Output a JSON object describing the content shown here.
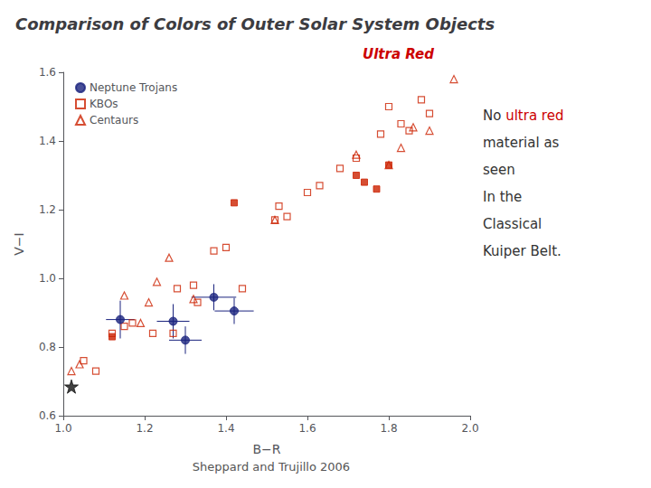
{
  "chart_data": {
    "type": "scatter",
    "title": "Comparison of Colors of Outer Solar System Objects",
    "subtitle": "Sheppard and Trujillo 2006",
    "xlabel": "B−R",
    "ylabel": "V−I",
    "xlim": [
      1.0,
      2.0
    ],
    "ylim": [
      0.6,
      1.6
    ],
    "xticks": [
      {
        "value": 1.0,
        "label": "1.0"
      },
      {
        "value": 1.2,
        "label": "1.2"
      },
      {
        "value": 1.4,
        "label": "1.4"
      },
      {
        "value": 1.6,
        "label": "1.6"
      },
      {
        "value": 1.8,
        "label": "1.8"
      },
      {
        "value": 2.0,
        "label": "2.0"
      }
    ],
    "yticks": [
      {
        "value": 0.6,
        "label": "0.6"
      },
      {
        "value": 0.8,
        "label": "0.8"
      },
      {
        "value": 1.0,
        "label": "1.0"
      },
      {
        "value": 1.2,
        "label": "1.2"
      },
      {
        "value": 1.4,
        "label": "1.4"
      },
      {
        "value": 1.6,
        "label": "1.6"
      }
    ],
    "grid": false,
    "legend": "upper left",
    "series": [
      {
        "name": "Neptune Trojans",
        "marker": "circle",
        "color": "#1a237e",
        "x": [
          1.14,
          1.27,
          1.3,
          1.37,
          1.42
        ],
        "values": [
          0.88,
          0.875,
          0.82,
          0.945,
          0.905
        ],
        "xerr": [
          0.035,
          0.04,
          0.04,
          0.055,
          0.048
        ],
        "yerr": [
          0.055,
          0.05,
          0.04,
          0.038,
          0.038
        ]
      },
      {
        "name": "KBOs",
        "marker": "square_open",
        "color": "#cc2200",
        "x": [
          1.05,
          1.08,
          1.12,
          1.15,
          1.17,
          1.22,
          1.27,
          1.28,
          1.32,
          1.33,
          1.37,
          1.4,
          1.44,
          1.52,
          1.53,
          1.55,
          1.6,
          1.63,
          1.68,
          1.72,
          1.78,
          1.8,
          1.83,
          1.85,
          1.88,
          1.9
        ],
        "values": [
          0.76,
          0.73,
          0.84,
          0.86,
          0.87,
          0.84,
          0.84,
          0.97,
          0.98,
          0.93,
          1.08,
          1.09,
          0.97,
          1.17,
          1.21,
          1.18,
          1.25,
          1.27,
          1.32,
          1.35,
          1.42,
          1.5,
          1.45,
          1.43,
          1.52,
          1.48
        ]
      },
      {
        "name": "KBOs",
        "marker": "square",
        "color": "#cc2200",
        "x": [
          1.12,
          1.42,
          1.72,
          1.74,
          1.77,
          1.8
        ],
        "values": [
          0.83,
          1.22,
          1.3,
          1.28,
          1.26,
          1.33
        ]
      },
      {
        "name": "Centaurs",
        "marker": "triangle_open",
        "color": "#cc2200",
        "x": [
          1.02,
          1.04,
          1.15,
          1.19,
          1.21,
          1.23,
          1.26,
          1.32,
          1.52,
          1.72,
          1.8,
          1.83,
          1.86,
          1.9,
          1.96
        ],
        "values": [
          0.73,
          0.75,
          0.95,
          0.87,
          0.93,
          0.99,
          1.06,
          0.94,
          1.17,
          1.36,
          1.33,
          1.38,
          1.44,
          1.43,
          1.58
        ]
      },
      {
        "marker": "star",
        "color": "#111111",
        "x": [
          1.02
        ],
        "values": [
          0.685
        ]
      }
    ],
    "annotations": [
      {
        "text": "Ultra Red",
        "color": "#cc0000"
      },
      {
        "lines": [
          [
            {
              "text": "No "
            },
            {
              "text": "ultra red",
              "color": "#cc0000"
            }
          ],
          [
            {
              "text": "material as"
            }
          ],
          [
            {
              "text": "seen"
            }
          ],
          [
            {
              "text": "In the"
            }
          ],
          [
            {
              "text": "Classical"
            }
          ],
          [
            {
              "text": "Kuiper Belt."
            }
          ]
        ]
      }
    ]
  }
}
